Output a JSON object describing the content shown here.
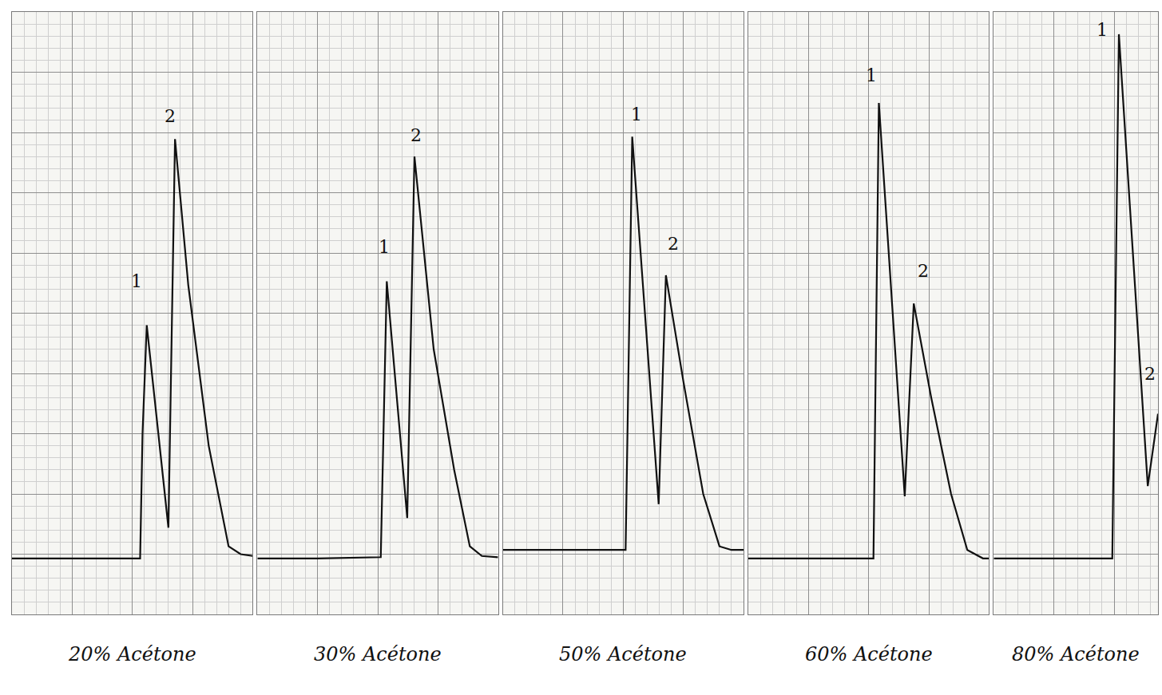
{
  "chart_data": [
    {
      "type": "line",
      "title": "20% Acétone",
      "color": "#111111",
      "grid": true,
      "tick_labels": false,
      "xlim": [
        0,
        4
      ],
      "xticks": [
        0,
        1,
        2,
        3,
        4
      ],
      "ylim": [
        0,
        10
      ],
      "yticks": [
        0,
        1,
        2,
        3,
        4,
        5,
        6,
        7,
        8,
        9,
        10
      ],
      "x": [
        0,
        1,
        2.13,
        2.17,
        2.24,
        2.6,
        2.71,
        2.93,
        3.27,
        3.6,
        3.8,
        4.0
      ],
      "values": [
        0.93,
        0.93,
        0.93,
        3.0,
        4.8,
        1.44,
        7.89,
        5.47,
        2.8,
        1.13,
        1.0,
        0.97
      ],
      "annotations": [
        {
          "text": "1",
          "x": 2.07,
          "y": 5.53
        },
        {
          "text": "2",
          "x": 2.63,
          "y": 8.27
        }
      ]
    },
    {
      "type": "line",
      "title": "30% Acétone",
      "color": "#111111",
      "grid": true,
      "tick_labels": false,
      "xlim": [
        0,
        4
      ],
      "xticks": [
        0,
        1,
        2,
        3,
        4
      ],
      "ylim": [
        0,
        10
      ],
      "yticks": [
        0,
        1,
        2,
        3,
        4,
        5,
        6,
        7,
        8,
        9,
        10
      ],
      "x": [
        0,
        1,
        2.05,
        2.15,
        2.49,
        2.61,
        2.93,
        3.27,
        3.53,
        3.73,
        4.0
      ],
      "values": [
        0.93,
        0.93,
        0.95,
        5.53,
        1.6,
        7.6,
        4.4,
        2.4,
        1.13,
        0.97,
        0.95
      ],
      "annotations": [
        {
          "text": "1",
          "x": 2.1,
          "y": 6.1
        },
        {
          "text": "2",
          "x": 2.64,
          "y": 7.95
        }
      ]
    },
    {
      "type": "line",
      "title": "50% Acétone",
      "color": "#111111",
      "grid": true,
      "tick_labels": false,
      "xlim": [
        0,
        4
      ],
      "xticks": [
        0,
        1,
        2,
        3,
        4
      ],
      "ylim": [
        0,
        10
      ],
      "yticks": [
        0,
        1,
        2,
        3,
        4,
        5,
        6,
        7,
        8,
        9,
        10
      ],
      "x": [
        0,
        1,
        2.04,
        2.15,
        2.59,
        2.71,
        3.0,
        3.33,
        3.6,
        3.8,
        4.0
      ],
      "values": [
        1.07,
        1.07,
        1.07,
        7.93,
        1.83,
        5.63,
        3.87,
        2.0,
        1.13,
        1.07,
        1.07
      ],
      "annotations": [
        {
          "text": "1",
          "x": 2.22,
          "y": 8.3
        },
        {
          "text": "2",
          "x": 2.83,
          "y": 6.15
        }
      ]
    },
    {
      "type": "line",
      "title": "60% Acétone",
      "color": "#111111",
      "grid": true,
      "tick_labels": false,
      "xlim": [
        0,
        4
      ],
      "xticks": [
        0,
        1,
        2,
        3,
        4
      ],
      "ylim": [
        0,
        10
      ],
      "yticks": [
        0,
        1,
        2,
        3,
        4,
        5,
        6,
        7,
        8,
        9,
        10
      ],
      "x": [
        0,
        1,
        2.08,
        2.17,
        2.6,
        2.75,
        3.04,
        3.37,
        3.64,
        3.9,
        4.0
      ],
      "values": [
        0.93,
        0.93,
        0.93,
        8.49,
        1.96,
        5.16,
        3.6,
        2.0,
        1.07,
        0.93,
        0.93
      ],
      "annotations": [
        {
          "text": "1",
          "x": 2.04,
          "y": 8.95
        },
        {
          "text": "2",
          "x": 2.91,
          "y": 5.7
        }
      ]
    },
    {
      "type": "line",
      "title": "80% Acétone",
      "color": "#111111",
      "grid": true,
      "tick_labels": false,
      "xlim": [
        0,
        2.73
      ],
      "xticks": [
        0,
        1,
        2
      ],
      "ylim": [
        0,
        10
      ],
      "yticks": [
        0,
        1,
        2,
        3,
        4,
        5,
        6,
        7,
        8,
        9,
        10
      ],
      "x": [
        0,
        1,
        1.97,
        2.08,
        2.56,
        2.73
      ],
      "values": [
        0.93,
        0.93,
        0.93,
        9.63,
        2.13,
        3.33
      ],
      "annotations": [
        {
          "text": "1",
          "x": 1.8,
          "y": 9.7
        },
        {
          "text": "2",
          "x": 2.6,
          "y": 4.0
        }
      ]
    }
  ]
}
